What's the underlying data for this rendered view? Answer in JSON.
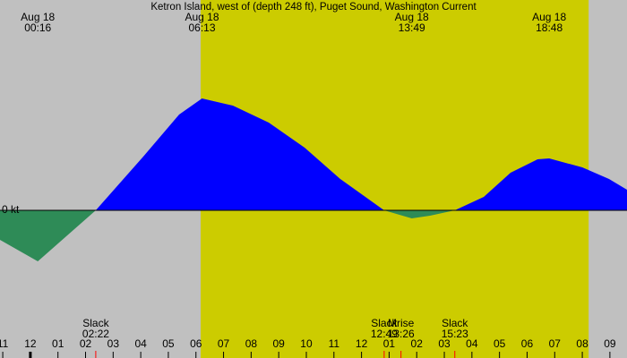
{
  "chart_data": {
    "type": "area",
    "title": "Ketron Island, west of (depth 248 ft), Puget Sound, Washington Current",
    "x": [
      -1.1,
      0.27,
      2.37,
      4.09,
      5.39,
      6.22,
      7.34,
      8.64,
      9.94,
      11.23,
      12.82,
      13.82,
      14.48,
      15.38,
      16.43,
      17.4,
      18.38,
      18.8,
      20.0,
      20.97,
      21.62
    ],
    "series": [
      {
        "color": "#0000ff",
        "negative_color": "#2e8b57",
        "values": [
          -0.33,
          -0.57,
          0,
          0.6,
          1.07,
          1.25,
          1.17,
          0.98,
          0.7,
          0.35,
          0,
          -0.09,
          -0.06,
          0,
          0.15,
          0.42,
          0.57,
          0.58,
          0.48,
          0.35,
          0.23
        ]
      }
    ],
    "xlim": [
      -1.1,
      21.62
    ],
    "ylim": [
      -1.65,
      2.35
    ],
    "yticks": [
      {
        "value": 0,
        "label": "0 kt"
      }
    ],
    "xticks": [
      {
        "value": -1,
        "label": "11"
      },
      {
        "value": 0,
        "label": "12"
      },
      {
        "value": 1,
        "label": "01"
      },
      {
        "value": 2,
        "label": "02"
      },
      {
        "value": 3,
        "label": "03"
      },
      {
        "value": 4,
        "label": "04"
      },
      {
        "value": 5,
        "label": "05"
      },
      {
        "value": 6,
        "label": "06"
      },
      {
        "value": 7,
        "label": "07"
      },
      {
        "value": 8,
        "label": "08"
      },
      {
        "value": 9,
        "label": "09"
      },
      {
        "value": 10,
        "label": "10"
      },
      {
        "value": 11,
        "label": "11"
      },
      {
        "value": 12,
        "label": "12"
      },
      {
        "value": 13,
        "label": "01"
      },
      {
        "value": 14,
        "label": "02"
      },
      {
        "value": 15,
        "label": "03"
      },
      {
        "value": 16,
        "label": "04"
      },
      {
        "value": 17,
        "label": "05"
      },
      {
        "value": 18,
        "label": "06"
      },
      {
        "value": 19,
        "label": "07"
      },
      {
        "value": 20,
        "label": "08"
      },
      {
        "value": 21,
        "label": "09"
      }
    ],
    "daylight": [
      6.17,
      20.23
    ],
    "daylight_color": "#cccc00",
    "background_color": "#c0c0c0",
    "top_events": [
      {
        "date": "Aug 18",
        "time": "00:16",
        "x": 0.27
      },
      {
        "date": "Aug 18",
        "time": "06:13",
        "x": 6.22
      },
      {
        "date": "Aug 18",
        "time": "13:49",
        "x": 13.82
      },
      {
        "date": "Aug 18",
        "time": "18:48",
        "x": 18.8
      }
    ],
    "bottom_events": [
      {
        "name": "Slack",
        "time": "02:22",
        "x": 2.37
      },
      {
        "name": "Slack",
        "time": "12:49",
        "x": 12.82
      },
      {
        "name": "Mrise",
        "time": "13:26",
        "x": 13.43
      },
      {
        "name": "Slack",
        "time": "15:23",
        "x": 15.38
      }
    ]
  }
}
